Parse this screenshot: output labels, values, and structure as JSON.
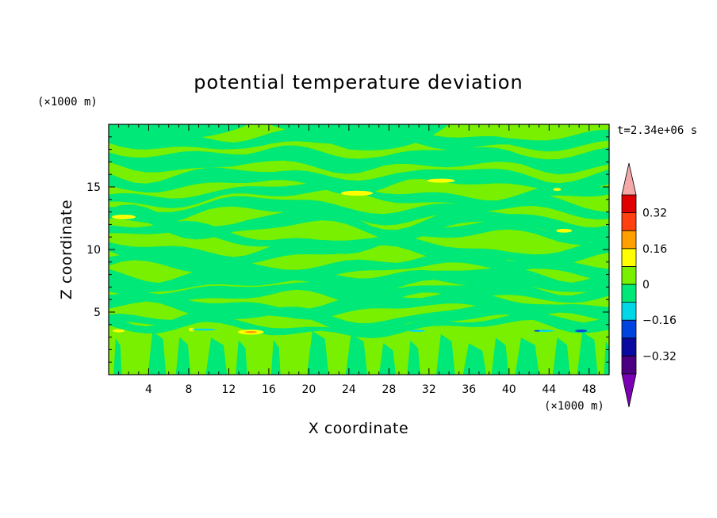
{
  "chart_data": {
    "type": "heatmap",
    "title": "potential temperature deviation",
    "xlabel": "X coordinate",
    "ylabel": "Z coordinate",
    "x_unit": "(×1000 m)",
    "y_unit": "(×1000 m)",
    "time_label": "t=2.34e+06 s",
    "xlim": [
      0,
      50
    ],
    "ylim": [
      0,
      20
    ],
    "x_ticks": [
      4,
      8,
      12,
      16,
      20,
      24,
      28,
      32,
      36,
      40,
      44,
      48
    ],
    "y_ticks": [
      5,
      10,
      15
    ],
    "colorbar": {
      "levels": [
        -0.4,
        -0.32,
        -0.24,
        -0.16,
        -0.08,
        0,
        0.08,
        0.16,
        0.24,
        0.32,
        0.4
      ],
      "labels": [
        {
          "value": 0.32,
          "text": "0.32"
        },
        {
          "value": 0.16,
          "text": "0.16"
        },
        {
          "value": 0,
          "text": "0"
        },
        {
          "value": -0.16,
          "text": "−0.16"
        },
        {
          "value": -0.32,
          "text": "−0.32"
        }
      ],
      "colors": [
        "#4b0082",
        "#0a0aa0",
        "#0044e0",
        "#00d8e8",
        "#00e878",
        "#78f000",
        "#ffff00",
        "#ffa000",
        "#ff4010",
        "#e00000"
      ],
      "extend_low_color": "#7a00b4",
      "extend_high_color": "#f4a8a8"
    },
    "dominant_values": [
      "0 to 0.08",
      "-0.08 to 0"
    ],
    "colors": {
      "positive_small": "#78f000",
      "negative_small": "#00e878",
      "moderate_positive": "#ffff00",
      "orange": "#ffa000",
      "red": "#ff4010",
      "cyan": "#00d8e8",
      "blue": "#0044e0"
    }
  }
}
